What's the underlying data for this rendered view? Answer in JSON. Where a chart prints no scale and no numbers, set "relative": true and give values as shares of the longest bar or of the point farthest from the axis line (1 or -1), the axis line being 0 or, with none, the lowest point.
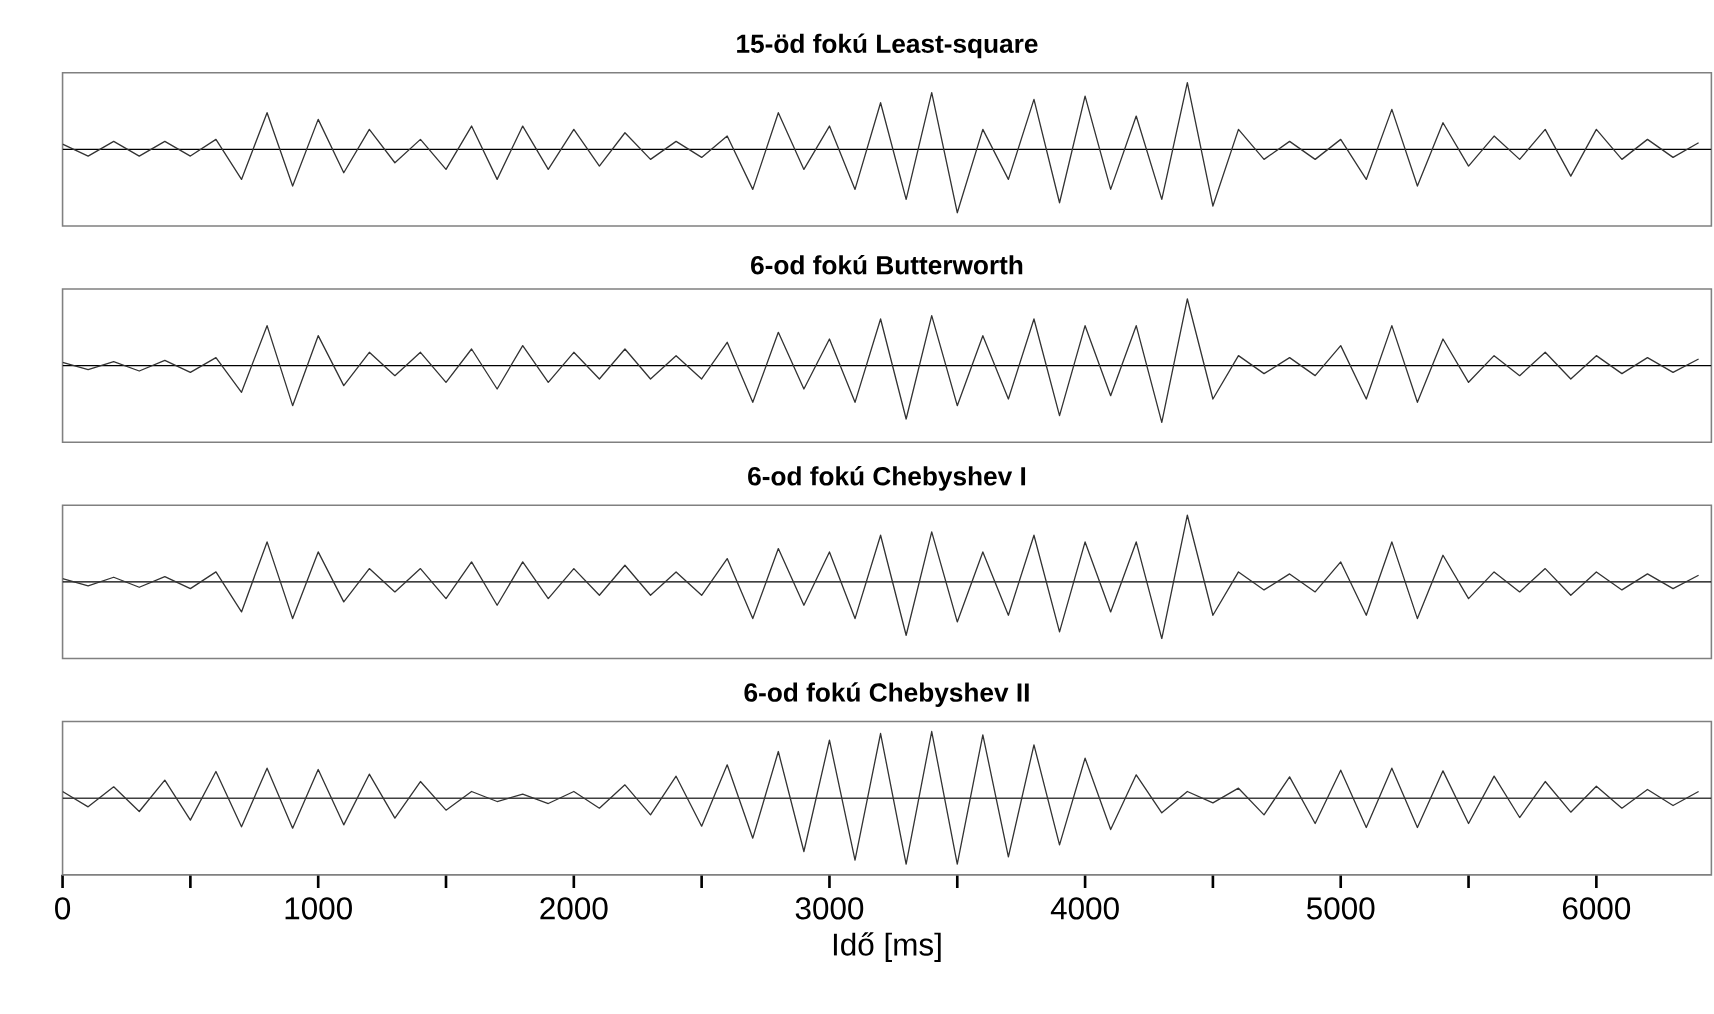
{
  "chart_data": [
    {
      "type": "line",
      "title": "15-öd fokú Least-square",
      "relative": true,
      "xlim": [
        0,
        6450
      ],
      "x": [
        0,
        100,
        200,
        300,
        400,
        500,
        600,
        700,
        800,
        900,
        1000,
        1100,
        1200,
        1300,
        1400,
        1500,
        1600,
        1700,
        1800,
        1900,
        2000,
        2100,
        2200,
        2300,
        2400,
        2500,
        2600,
        2700,
        2800,
        2900,
        3000,
        3100,
        3200,
        3300,
        3400,
        3500,
        3600,
        3700,
        3800,
        3900,
        4000,
        4100,
        4200,
        4300,
        4400,
        4500,
        4600,
        4700,
        4800,
        4900,
        5000,
        5100,
        5200,
        5300,
        5400,
        5500,
        5600,
        5700,
        5800,
        5900,
        6000,
        6100,
        6200,
        6300,
        6400
      ],
      "series": [
        {
          "color": "#333333",
          "values": [
            0.08,
            -0.1,
            0.12,
            -0.1,
            0.12,
            -0.1,
            0.15,
            -0.45,
            0.55,
            -0.55,
            0.45,
            -0.35,
            0.3,
            -0.2,
            0.15,
            -0.3,
            0.35,
            -0.45,
            0.35,
            -0.3,
            0.3,
            -0.25,
            0.25,
            -0.15,
            0.12,
            -0.12,
            0.2,
            -0.6,
            0.55,
            -0.3,
            0.35,
            -0.6,
            0.7,
            -0.75,
            0.85,
            -0.95,
            0.3,
            -0.45,
            0.75,
            -0.8,
            0.8,
            -0.6,
            0.5,
            -0.75,
            1.0,
            -0.85,
            0.3,
            -0.15,
            0.12,
            -0.15,
            0.15,
            -0.45,
            0.6,
            -0.55,
            0.4,
            -0.25,
            0.2,
            -0.15,
            0.3,
            -0.4,
            0.3,
            -0.15,
            0.15,
            -0.12,
            0.1
          ]
        }
      ]
    },
    {
      "type": "line",
      "title": "6-od fokú Butterworth",
      "relative": true,
      "xlim": [
        0,
        6450
      ],
      "x": [
        0,
        100,
        200,
        300,
        400,
        500,
        600,
        700,
        800,
        900,
        1000,
        1100,
        1200,
        1300,
        1400,
        1500,
        1600,
        1700,
        1800,
        1900,
        2000,
        2100,
        2200,
        2300,
        2400,
        2500,
        2600,
        2700,
        2800,
        2900,
        3000,
        3100,
        3200,
        3300,
        3400,
        3500,
        3600,
        3700,
        3800,
        3900,
        4000,
        4100,
        4200,
        4300,
        4400,
        4500,
        4600,
        4700,
        4800,
        4900,
        5000,
        5100,
        5200,
        5300,
        5400,
        5500,
        5600,
        5700,
        5800,
        5900,
        6000,
        6100,
        6200,
        6300,
        6400
      ],
      "series": [
        {
          "color": "#333333",
          "values": [
            0.05,
            -0.06,
            0.06,
            -0.08,
            0.08,
            -0.1,
            0.12,
            -0.4,
            0.6,
            -0.6,
            0.45,
            -0.3,
            0.2,
            -0.15,
            0.2,
            -0.25,
            0.25,
            -0.35,
            0.3,
            -0.25,
            0.2,
            -0.2,
            0.25,
            -0.2,
            0.15,
            -0.2,
            0.35,
            -0.55,
            0.5,
            -0.35,
            0.4,
            -0.55,
            0.7,
            -0.8,
            0.75,
            -0.6,
            0.45,
            -0.5,
            0.7,
            -0.75,
            0.6,
            -0.45,
            0.6,
            -0.85,
            1.0,
            -0.5,
            0.15,
            -0.12,
            0.12,
            -0.15,
            0.3,
            -0.5,
            0.6,
            -0.55,
            0.4,
            -0.25,
            0.15,
            -0.15,
            0.2,
            -0.2,
            0.15,
            -0.12,
            0.12,
            -0.1,
            0.1
          ]
        }
      ]
    },
    {
      "type": "line",
      "title": "6-od fokú Chebyshev I",
      "relative": true,
      "xlim": [
        0,
        6450
      ],
      "x": [
        0,
        100,
        200,
        300,
        400,
        500,
        600,
        700,
        800,
        900,
        1000,
        1100,
        1200,
        1300,
        1400,
        1500,
        1600,
        1700,
        1800,
        1900,
        2000,
        2100,
        2200,
        2300,
        2400,
        2500,
        2600,
        2700,
        2800,
        2900,
        3000,
        3100,
        3200,
        3300,
        3400,
        3500,
        3600,
        3700,
        3800,
        3900,
        4000,
        4100,
        4200,
        4300,
        4400,
        4500,
        4600,
        4700,
        4800,
        4900,
        5000,
        5100,
        5200,
        5300,
        5400,
        5500,
        5600,
        5700,
        5800,
        5900,
        6000,
        6100,
        6200,
        6300,
        6400
      ],
      "series": [
        {
          "color": "#333333",
          "values": [
            0.05,
            -0.06,
            0.07,
            -0.08,
            0.08,
            -0.1,
            0.15,
            -0.45,
            0.6,
            -0.55,
            0.45,
            -0.3,
            0.2,
            -0.15,
            0.2,
            -0.25,
            0.3,
            -0.35,
            0.3,
            -0.25,
            0.2,
            -0.2,
            0.25,
            -0.2,
            0.15,
            -0.2,
            0.35,
            -0.55,
            0.5,
            -0.35,
            0.45,
            -0.55,
            0.7,
            -0.8,
            0.75,
            -0.6,
            0.45,
            -0.5,
            0.7,
            -0.75,
            0.6,
            -0.45,
            0.6,
            -0.85,
            1.0,
            -0.5,
            0.15,
            -0.12,
            0.12,
            -0.15,
            0.3,
            -0.5,
            0.6,
            -0.55,
            0.4,
            -0.25,
            0.15,
            -0.15,
            0.2,
            -0.2,
            0.15,
            -0.12,
            0.12,
            -0.1,
            0.1
          ]
        }
      ]
    },
    {
      "type": "line",
      "title": "6-od fokú Chebyshev II",
      "relative": true,
      "xlim": [
        0,
        6450
      ],
      "xlabel": "Idő [ms]",
      "xticks": [
        0,
        {
          "value": 500,
          "label": null
        },
        1000,
        {
          "value": 1500,
          "label": null
        },
        2000,
        {
          "value": 2500,
          "label": null
        },
        3000,
        {
          "value": 3500,
          "label": null
        },
        4000,
        {
          "value": 4500,
          "label": null
        },
        5000,
        {
          "value": 5500,
          "label": null
        },
        6000
      ],
      "x": [
        0,
        100,
        200,
        300,
        400,
        500,
        600,
        700,
        800,
        900,
        1000,
        1100,
        1200,
        1300,
        1400,
        1500,
        1600,
        1700,
        1800,
        1900,
        2000,
        2100,
        2200,
        2300,
        2400,
        2500,
        2600,
        2700,
        2800,
        2900,
        3000,
        3100,
        3200,
        3300,
        3400,
        3500,
        3600,
        3700,
        3800,
        3900,
        4000,
        4100,
        4200,
        4300,
        4400,
        4500,
        4600,
        4700,
        4800,
        4900,
        5000,
        5100,
        5200,
        5300,
        5400,
        5500,
        5600,
        5700,
        5800,
        5900,
        6000,
        6100,
        6200,
        6300,
        6400
      ],
      "series": [
        {
          "color": "#333333",
          "values": [
            0.1,
            -0.13,
            0.17,
            -0.2,
            0.27,
            -0.33,
            0.4,
            -0.43,
            0.45,
            -0.45,
            0.43,
            -0.4,
            0.36,
            -0.3,
            0.25,
            -0.18,
            0.1,
            -0.05,
            0.06,
            -0.08,
            0.1,
            -0.15,
            0.2,
            -0.25,
            0.33,
            -0.42,
            0.5,
            -0.6,
            0.7,
            -0.8,
            0.87,
            -0.93,
            0.97,
            -0.99,
            1,
            -0.99,
            0.95,
            -0.88,
            0.8,
            -0.7,
            0.6,
            -0.47,
            0.35,
            -0.22,
            0.1,
            -0.07,
            0.15,
            -0.25,
            0.32,
            -0.38,
            0.42,
            -0.44,
            0.45,
            -0.44,
            0.41,
            -0.38,
            0.33,
            -0.29,
            0.25,
            -0.21,
            0.18,
            -0.15,
            0.13,
            -0.11,
            0.1
          ]
        }
      ]
    }
  ]
}
